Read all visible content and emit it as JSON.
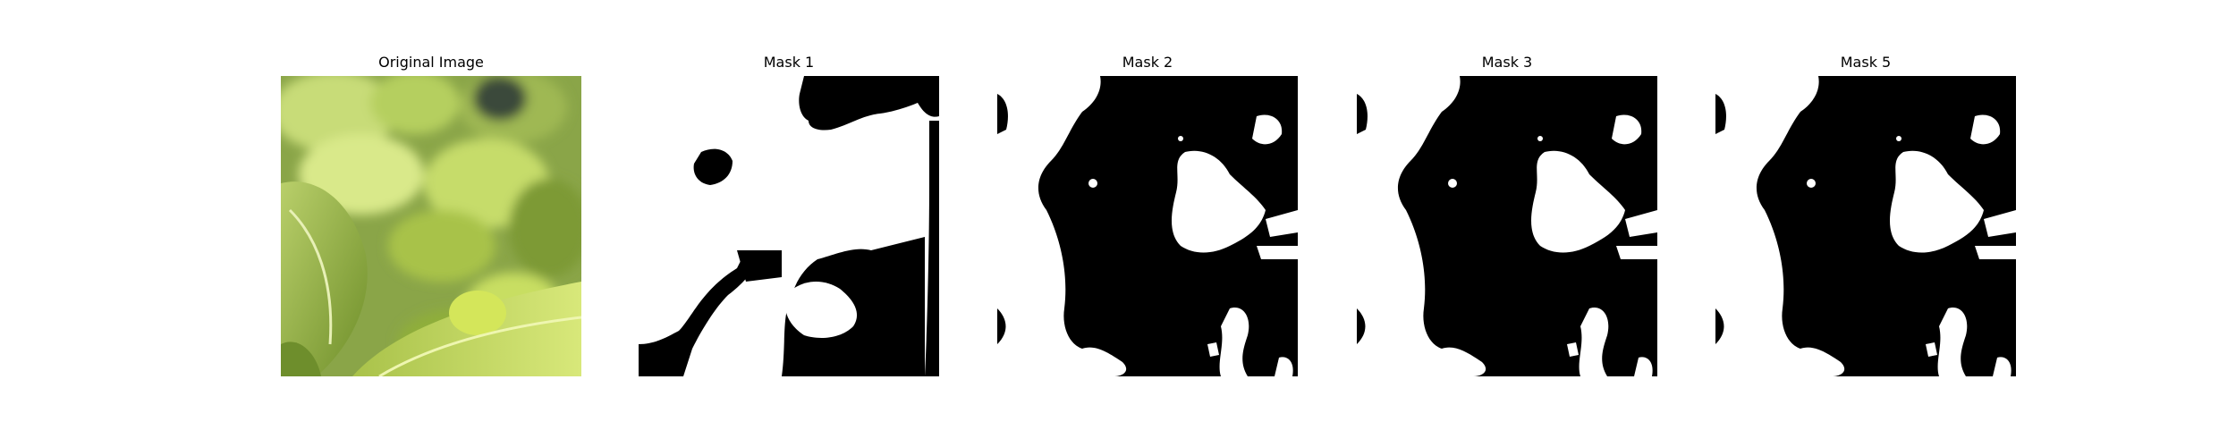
{
  "figure": {
    "panels": [
      {
        "title": "Original Image",
        "kind": "photo",
        "subject": "leafy-greens-photo"
      },
      {
        "title": "Mask 1",
        "kind": "mask"
      },
      {
        "title": "Mask 2",
        "kind": "mask"
      },
      {
        "title": "Mask 3",
        "kind": "mask"
      },
      {
        "title": "Mask 5",
        "kind": "mask"
      }
    ],
    "mask_colors": {
      "foreground": "#ffffff",
      "background": "#000000"
    }
  }
}
